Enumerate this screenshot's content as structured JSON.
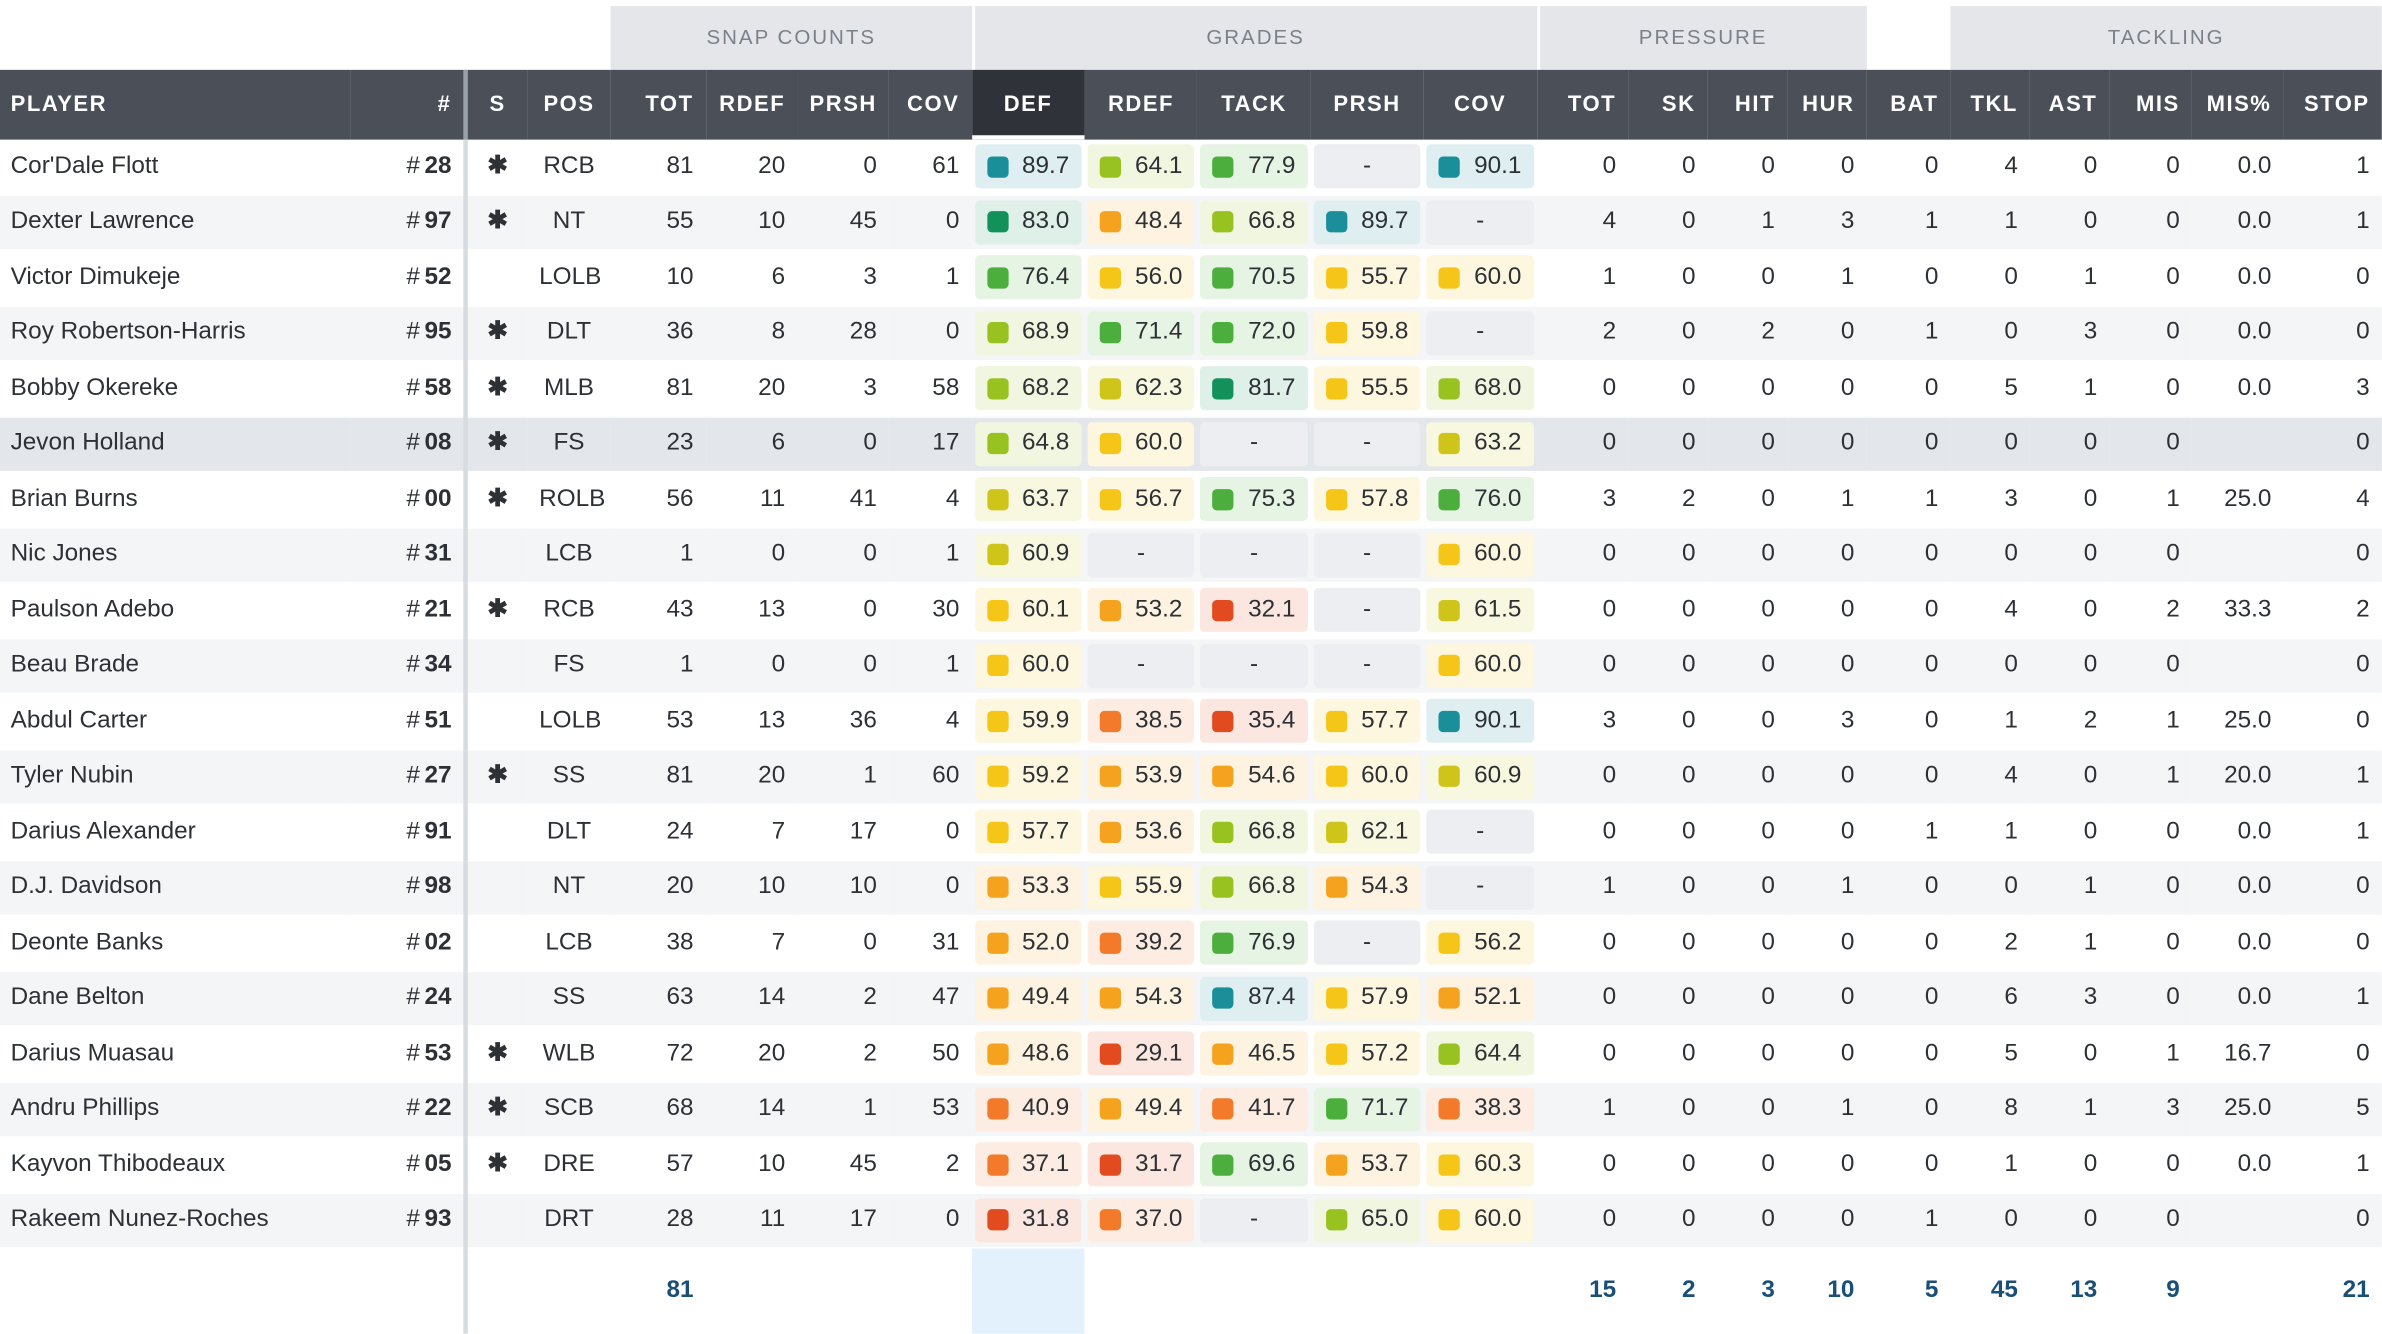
{
  "groups": {
    "snap_counts": "SNAP COUNTS",
    "grades": "GRADES",
    "pressure": "PRESSURE",
    "tackling": "TACKLING"
  },
  "headers": {
    "player": "PLAYER",
    "number": "#",
    "s": "S",
    "pos": "POS",
    "snap_tot": "TOT",
    "snap_rdef": "RDEF",
    "snap_prsh": "PRSH",
    "snap_cov": "COV",
    "gr_def": "DEF",
    "gr_rdef": "RDEF",
    "gr_tack": "TACK",
    "gr_prsh": "PRSH",
    "gr_cov": "COV",
    "pr_tot": "TOT",
    "pr_sk": "SK",
    "pr_hit": "HIT",
    "pr_hur": "HUR",
    "bat": "BAT",
    "tkl": "TKL",
    "ast": "AST",
    "mis": "MIS",
    "mis_pct": "MIS%",
    "stop": "STOP"
  },
  "colors": {
    "elite": "#1a8f9a",
    "high": "#12915a",
    "good": "#4cae3c",
    "abovegood": "#98c21f",
    "avg": "#cfc51a",
    "yellow": "#f5c518",
    "belowavg": "#f5a21f",
    "low": "#f27a2a",
    "poor": "#e24a1f"
  },
  "players": [
    {
      "name": "Cor'Dale Flott",
      "hash": "#",
      "num": "28",
      "s": "✱",
      "pos": "RCB",
      "tot": "81",
      "rdef": "20",
      "prsh": "0",
      "cov": "61",
      "g_def": "89.7",
      "g_rdef": "64.1",
      "g_tack": "77.9",
      "g_prsh": "-",
      "g_cov": "90.1",
      "p_tot": "0",
      "sk": "0",
      "hit": "0",
      "hur": "0",
      "bat": "0",
      "tkl": "4",
      "ast": "0",
      "mis": "0",
      "mis_pct": "0.0",
      "stop": "1"
    },
    {
      "name": "Dexter Lawrence",
      "hash": "#",
      "num": "97",
      "s": "✱",
      "pos": "NT",
      "tot": "55",
      "rdef": "10",
      "prsh": "45",
      "cov": "0",
      "g_def": "83.0",
      "g_rdef": "48.4",
      "g_tack": "66.8",
      "g_prsh": "89.7",
      "g_cov": "-",
      "p_tot": "4",
      "sk": "0",
      "hit": "1",
      "hur": "3",
      "bat": "1",
      "tkl": "1",
      "ast": "0",
      "mis": "0",
      "mis_pct": "0.0",
      "stop": "1"
    },
    {
      "name": "Victor Dimukeje",
      "hash": "#",
      "num": "52",
      "s": "",
      "pos": "LOLB",
      "tot": "10",
      "rdef": "6",
      "prsh": "3",
      "cov": "1",
      "g_def": "76.4",
      "g_rdef": "56.0",
      "g_tack": "70.5",
      "g_prsh": "55.7",
      "g_cov": "60.0",
      "p_tot": "1",
      "sk": "0",
      "hit": "0",
      "hur": "1",
      "bat": "0",
      "tkl": "0",
      "ast": "1",
      "mis": "0",
      "mis_pct": "0.0",
      "stop": "0"
    },
    {
      "name": "Roy Robertson-Harris",
      "hash": "#",
      "num": "95",
      "s": "✱",
      "pos": "DLT",
      "tot": "36",
      "rdef": "8",
      "prsh": "28",
      "cov": "0",
      "g_def": "68.9",
      "g_rdef": "71.4",
      "g_tack": "72.0",
      "g_prsh": "59.8",
      "g_cov": "-",
      "p_tot": "2",
      "sk": "0",
      "hit": "2",
      "hur": "0",
      "bat": "1",
      "tkl": "0",
      "ast": "3",
      "mis": "0",
      "mis_pct": "0.0",
      "stop": "0"
    },
    {
      "name": "Bobby Okereke",
      "hash": "#",
      "num": "58",
      "s": "✱",
      "pos": "MLB",
      "tot": "81",
      "rdef": "20",
      "prsh": "3",
      "cov": "58",
      "g_def": "68.2",
      "g_rdef": "62.3",
      "g_tack": "81.7",
      "g_prsh": "55.5",
      "g_cov": "68.0",
      "p_tot": "0",
      "sk": "0",
      "hit": "0",
      "hur": "0",
      "bat": "0",
      "tkl": "5",
      "ast": "1",
      "mis": "0",
      "mis_pct": "0.0",
      "stop": "3"
    },
    {
      "name": "Jevon Holland",
      "hash": "#",
      "num": "08",
      "s": "✱",
      "pos": "FS",
      "tot": "23",
      "rdef": "6",
      "prsh": "0",
      "cov": "17",
      "g_def": "64.8",
      "g_rdef": "60.0",
      "g_tack": "-",
      "g_prsh": "-",
      "g_cov": "63.2",
      "p_tot": "0",
      "sk": "0",
      "hit": "0",
      "hur": "0",
      "bat": "0",
      "tkl": "0",
      "ast": "0",
      "mis": "0",
      "mis_pct": "",
      "stop": "0"
    },
    {
      "name": "Brian Burns",
      "hash": "#",
      "num": "00",
      "s": "✱",
      "pos": "ROLB",
      "tot": "56",
      "rdef": "11",
      "prsh": "41",
      "cov": "4",
      "g_def": "63.7",
      "g_rdef": "56.7",
      "g_tack": "75.3",
      "g_prsh": "57.8",
      "g_cov": "76.0",
      "p_tot": "3",
      "sk": "2",
      "hit": "0",
      "hur": "1",
      "bat": "1",
      "tkl": "3",
      "ast": "0",
      "mis": "1",
      "mis_pct": "25.0",
      "stop": "4"
    },
    {
      "name": "Nic Jones",
      "hash": "#",
      "num": "31",
      "s": "",
      "pos": "LCB",
      "tot": "1",
      "rdef": "0",
      "prsh": "0",
      "cov": "1",
      "g_def": "60.9",
      "g_rdef": "-",
      "g_tack": "-",
      "g_prsh": "-",
      "g_cov": "60.0",
      "p_tot": "0",
      "sk": "0",
      "hit": "0",
      "hur": "0",
      "bat": "0",
      "tkl": "0",
      "ast": "0",
      "mis": "0",
      "mis_pct": "",
      "stop": "0"
    },
    {
      "name": "Paulson Adebo",
      "hash": "#",
      "num": "21",
      "s": "✱",
      "pos": "RCB",
      "tot": "43",
      "rdef": "13",
      "prsh": "0",
      "cov": "30",
      "g_def": "60.1",
      "g_rdef": "53.2",
      "g_tack": "32.1",
      "g_prsh": "-",
      "g_cov": "61.5",
      "p_tot": "0",
      "sk": "0",
      "hit": "0",
      "hur": "0",
      "bat": "0",
      "tkl": "4",
      "ast": "0",
      "mis": "2",
      "mis_pct": "33.3",
      "stop": "2"
    },
    {
      "name": "Beau Brade",
      "hash": "#",
      "num": "34",
      "s": "",
      "pos": "FS",
      "tot": "1",
      "rdef": "0",
      "prsh": "0",
      "cov": "1",
      "g_def": "60.0",
      "g_rdef": "-",
      "g_tack": "-",
      "g_prsh": "-",
      "g_cov": "60.0",
      "p_tot": "0",
      "sk": "0",
      "hit": "0",
      "hur": "0",
      "bat": "0",
      "tkl": "0",
      "ast": "0",
      "mis": "0",
      "mis_pct": "",
      "stop": "0"
    },
    {
      "name": "Abdul Carter",
      "hash": "#",
      "num": "51",
      "s": "",
      "pos": "LOLB",
      "tot": "53",
      "rdef": "13",
      "prsh": "36",
      "cov": "4",
      "g_def": "59.9",
      "g_rdef": "38.5",
      "g_tack": "35.4",
      "g_prsh": "57.7",
      "g_cov": "90.1",
      "p_tot": "3",
      "sk": "0",
      "hit": "0",
      "hur": "3",
      "bat": "0",
      "tkl": "1",
      "ast": "2",
      "mis": "1",
      "mis_pct": "25.0",
      "stop": "0"
    },
    {
      "name": "Tyler Nubin",
      "hash": "#",
      "num": "27",
      "s": "✱",
      "pos": "SS",
      "tot": "81",
      "rdef": "20",
      "prsh": "1",
      "cov": "60",
      "g_def": "59.2",
      "g_rdef": "53.9",
      "g_tack": "54.6",
      "g_prsh": "60.0",
      "g_cov": "60.9",
      "p_tot": "0",
      "sk": "0",
      "hit": "0",
      "hur": "0",
      "bat": "0",
      "tkl": "4",
      "ast": "0",
      "mis": "1",
      "mis_pct": "20.0",
      "stop": "1"
    },
    {
      "name": "Darius Alexander",
      "hash": "#",
      "num": "91",
      "s": "",
      "pos": "DLT",
      "tot": "24",
      "rdef": "7",
      "prsh": "17",
      "cov": "0",
      "g_def": "57.7",
      "g_rdef": "53.6",
      "g_tack": "66.8",
      "g_prsh": "62.1",
      "g_cov": "-",
      "p_tot": "0",
      "sk": "0",
      "hit": "0",
      "hur": "0",
      "bat": "1",
      "tkl": "1",
      "ast": "0",
      "mis": "0",
      "mis_pct": "0.0",
      "stop": "1"
    },
    {
      "name": "D.J. Davidson",
      "hash": "#",
      "num": "98",
      "s": "",
      "pos": "NT",
      "tot": "20",
      "rdef": "10",
      "prsh": "10",
      "cov": "0",
      "g_def": "53.3",
      "g_rdef": "55.9",
      "g_tack": "66.8",
      "g_prsh": "54.3",
      "g_cov": "-",
      "p_tot": "1",
      "sk": "0",
      "hit": "0",
      "hur": "1",
      "bat": "0",
      "tkl": "0",
      "ast": "1",
      "mis": "0",
      "mis_pct": "0.0",
      "stop": "0"
    },
    {
      "name": "Deonte Banks",
      "hash": "#",
      "num": "02",
      "s": "",
      "pos": "LCB",
      "tot": "38",
      "rdef": "7",
      "prsh": "0",
      "cov": "31",
      "g_def": "52.0",
      "g_rdef": "39.2",
      "g_tack": "76.9",
      "g_prsh": "-",
      "g_cov": "56.2",
      "p_tot": "0",
      "sk": "0",
      "hit": "0",
      "hur": "0",
      "bat": "0",
      "tkl": "2",
      "ast": "1",
      "mis": "0",
      "mis_pct": "0.0",
      "stop": "0"
    },
    {
      "name": "Dane Belton",
      "hash": "#",
      "num": "24",
      "s": "",
      "pos": "SS",
      "tot": "63",
      "rdef": "14",
      "prsh": "2",
      "cov": "47",
      "g_def": "49.4",
      "g_rdef": "54.3",
      "g_tack": "87.4",
      "g_prsh": "57.9",
      "g_cov": "52.1",
      "p_tot": "0",
      "sk": "0",
      "hit": "0",
      "hur": "0",
      "bat": "0",
      "tkl": "6",
      "ast": "3",
      "mis": "0",
      "mis_pct": "0.0",
      "stop": "1"
    },
    {
      "name": "Darius Muasau",
      "hash": "#",
      "num": "53",
      "s": "✱",
      "pos": "WLB",
      "tot": "72",
      "rdef": "20",
      "prsh": "2",
      "cov": "50",
      "g_def": "48.6",
      "g_rdef": "29.1",
      "g_tack": "46.5",
      "g_prsh": "57.2",
      "g_cov": "64.4",
      "p_tot": "0",
      "sk": "0",
      "hit": "0",
      "hur": "0",
      "bat": "0",
      "tkl": "5",
      "ast": "0",
      "mis": "1",
      "mis_pct": "16.7",
      "stop": "0"
    },
    {
      "name": "Andru Phillips",
      "hash": "#",
      "num": "22",
      "s": "✱",
      "pos": "SCB",
      "tot": "68",
      "rdef": "14",
      "prsh": "1",
      "cov": "53",
      "g_def": "40.9",
      "g_rdef": "49.4",
      "g_tack": "41.7",
      "g_prsh": "71.7",
      "g_cov": "38.3",
      "p_tot": "1",
      "sk": "0",
      "hit": "0",
      "hur": "1",
      "bat": "0",
      "tkl": "8",
      "ast": "1",
      "mis": "3",
      "mis_pct": "25.0",
      "stop": "5"
    },
    {
      "name": "Kayvon Thibodeaux",
      "hash": "#",
      "num": "05",
      "s": "✱",
      "pos": "DRE",
      "tot": "57",
      "rdef": "10",
      "prsh": "45",
      "cov": "2",
      "g_def": "37.1",
      "g_rdef": "31.7",
      "g_tack": "69.6",
      "g_prsh": "53.7",
      "g_cov": "60.3",
      "p_tot": "0",
      "sk": "0",
      "hit": "0",
      "hur": "0",
      "bat": "0",
      "tkl": "1",
      "ast": "0",
      "mis": "0",
      "mis_pct": "0.0",
      "stop": "1"
    },
    {
      "name": "Rakeem Nunez-Roches",
      "hash": "#",
      "num": "93",
      "s": "",
      "pos": "DRT",
      "tot": "28",
      "rdef": "11",
      "prsh": "17",
      "cov": "0",
      "g_def": "31.8",
      "g_rdef": "37.0",
      "g_tack": "-",
      "g_prsh": "65.0",
      "g_cov": "60.0",
      "p_tot": "0",
      "sk": "0",
      "hit": "0",
      "hur": "0",
      "bat": "1",
      "tkl": "0",
      "ast": "0",
      "mis": "0",
      "mis_pct": "",
      "stop": "0"
    }
  ],
  "totals": {
    "snap_tot": "81",
    "pr_tot": "15",
    "sk": "2",
    "hit": "3",
    "hur": "10",
    "bat": "5",
    "tkl": "45",
    "ast": "13",
    "mis": "9",
    "stop": "21"
  }
}
